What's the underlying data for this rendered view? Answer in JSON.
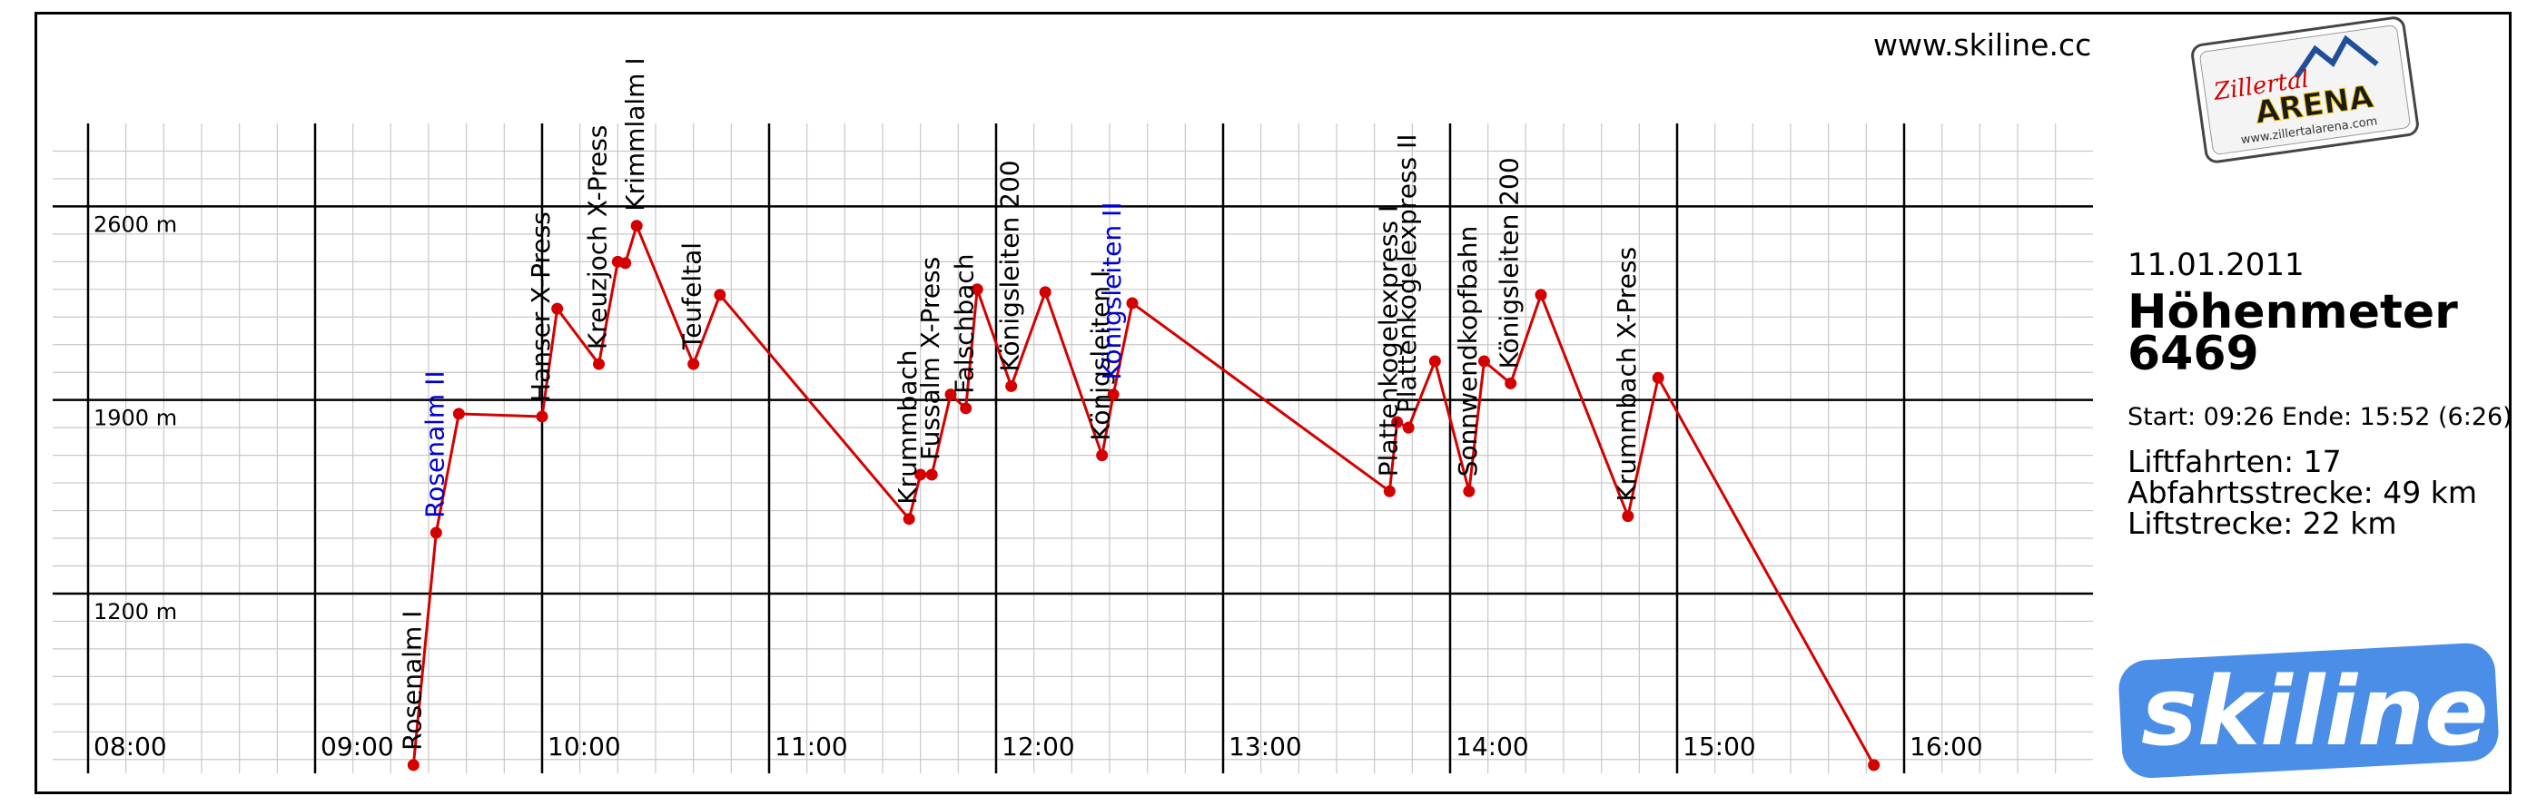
{
  "website": "www.skiline.cc",
  "logos": {
    "zillertal": {
      "word1": "Zillertal",
      "word2": "ARENA",
      "url": "www.zillertalarena.com"
    },
    "skiline": {
      "word": "skiline",
      "color": "#4a8ee8"
    }
  },
  "summary": {
    "date": "11.01.2011",
    "heading": "Höhenmeter",
    "value": "6469",
    "start_end": "Start: 09:26 Ende: 15:52 (6:26)",
    "lift_rides": "Liftfahrten: 17",
    "descent_distance": "Abfahrtsstrecke: 49 km",
    "lift_distance": "Liftstrecke: 22 km"
  },
  "chart_data": {
    "type": "line",
    "line_color": "#d40000",
    "highlight_color": "#0000d0",
    "x_axis": {
      "min": "08:00",
      "max": "16:45",
      "ticks": [
        "08:00",
        "09:00",
        "10:00",
        "11:00",
        "12:00",
        "13:00",
        "14:00",
        "15:00",
        "16:00"
      ]
    },
    "y_axis": {
      "min": 550,
      "max": 2900,
      "ticks": [
        1200,
        1900,
        2600
      ],
      "tick_labels": [
        "1200 m",
        "1900 m",
        "2600 m"
      ]
    },
    "grid": true,
    "points": [
      {
        "t": "09:26",
        "alt": 580
      },
      {
        "t": "09:32",
        "alt": 1420
      },
      {
        "t": "09:38",
        "alt": 1850
      },
      {
        "t": "10:00",
        "alt": 1840
      },
      {
        "t": "10:04",
        "alt": 2230
      },
      {
        "t": "10:15",
        "alt": 2030
      },
      {
        "t": "10:20",
        "alt": 2400
      },
      {
        "t": "10:22",
        "alt": 2395
      },
      {
        "t": "10:25",
        "alt": 2530
      },
      {
        "t": "10:40",
        "alt": 2030
      },
      {
        "t": "10:47",
        "alt": 2280
      },
      {
        "t": "11:37",
        "alt": 1470
      },
      {
        "t": "11:40",
        "alt": 1630
      },
      {
        "t": "11:43",
        "alt": 1630
      },
      {
        "t": "11:48",
        "alt": 1920
      },
      {
        "t": "11:52",
        "alt": 1870
      },
      {
        "t": "11:55",
        "alt": 2300
      },
      {
        "t": "12:04",
        "alt": 1950
      },
      {
        "t": "12:13",
        "alt": 2290
      },
      {
        "t": "12:28",
        "alt": 1700
      },
      {
        "t": "12:31",
        "alt": 1920
      },
      {
        "t": "12:36",
        "alt": 2250
      },
      {
        "t": "13:44",
        "alt": 1570
      },
      {
        "t": "13:46",
        "alt": 1820
      },
      {
        "t": "13:49",
        "alt": 1800
      },
      {
        "t": "13:56",
        "alt": 2040
      },
      {
        "t": "14:05",
        "alt": 1570
      },
      {
        "t": "14:09",
        "alt": 2040
      },
      {
        "t": "14:16",
        "alt": 1960
      },
      {
        "t": "14:24",
        "alt": 2280
      },
      {
        "t": "14:47",
        "alt": 1480
      },
      {
        "t": "14:55",
        "alt": 1980
      },
      {
        "t": "15:52",
        "alt": 580
      }
    ],
    "lift_labels": [
      {
        "text": "Rosenalm I",
        "t": "09:26",
        "alt": 580,
        "highlight": false
      },
      {
        "text": "Rosenalm II",
        "t": "09:32",
        "alt": 1420,
        "highlight": true
      },
      {
        "text": "Hanser X-Press",
        "t": "10:00",
        "alt": 1840,
        "highlight": false
      },
      {
        "text": "Kreuzjoch X-Press",
        "t": "10:15",
        "alt": 2030,
        "highlight": false
      },
      {
        "text": "Krimmlalm I",
        "t": "10:25",
        "alt": 2530,
        "highlight": false
      },
      {
        "text": "Teufeltal",
        "t": "10:40",
        "alt": 2030,
        "highlight": false
      },
      {
        "text": "Krummbach",
        "t": "11:37",
        "alt": 1470,
        "highlight": false
      },
      {
        "text": "Fussalm X-Press",
        "t": "11:43",
        "alt": 1630,
        "highlight": false
      },
      {
        "text": "Falschbach",
        "t": "11:52",
        "alt": 1870,
        "highlight": false
      },
      {
        "text": "Königsleiten 200",
        "t": "12:04",
        "alt": 1950,
        "highlight": false
      },
      {
        "text": "Königsleiten I",
        "t": "12:28",
        "alt": 1700,
        "highlight": false
      },
      {
        "text": "Königsleiten II",
        "t": "12:31",
        "alt": 1920,
        "highlight": true
      },
      {
        "text": "Plattenkogelexpress I",
        "t": "13:44",
        "alt": 1570,
        "highlight": false
      },
      {
        "text": "Plattenkogelexpress II",
        "t": "13:49",
        "alt": 1800,
        "highlight": false
      },
      {
        "text": "Sonnwendkopfbahn",
        "t": "14:05",
        "alt": 1570,
        "highlight": false
      },
      {
        "text": "Königsleiten 200",
        "t": "14:16",
        "alt": 1960,
        "highlight": false
      },
      {
        "text": "Krummbach X-Press",
        "t": "14:47",
        "alt": 1480,
        "highlight": false
      }
    ]
  }
}
